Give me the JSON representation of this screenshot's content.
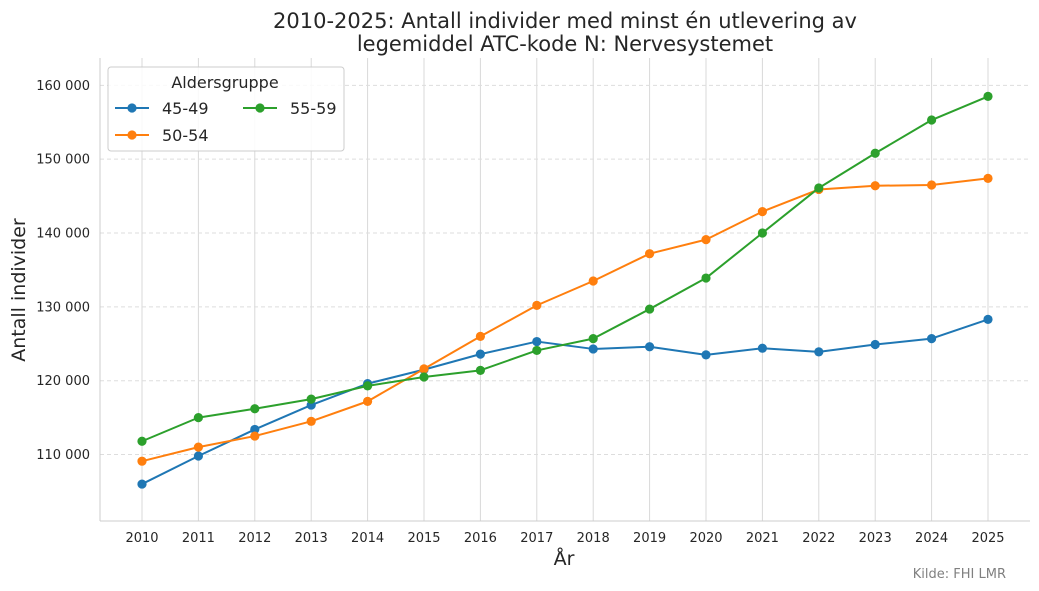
{
  "chart_data": {
    "type": "line",
    "title_line1": "2010-2025: Antall individer med minst én utlevering av",
    "title_line2": "legemiddel ATC-kode N: Nervesystemet",
    "xlabel": "År",
    "ylabel": "Antall individer",
    "x": [
      2010,
      2011,
      2012,
      2013,
      2014,
      2015,
      2016,
      2017,
      2018,
      2019,
      2020,
      2021,
      2022,
      2023,
      2024,
      2025
    ],
    "x_tick_labels": [
      "2010",
      "2011",
      "2012",
      "2013",
      "2014",
      "2015",
      "2016",
      "2017",
      "2018",
      "2019",
      "2020",
      "2021",
      "2022",
      "2023",
      "2024",
      "2025"
    ],
    "ylim": [
      101000,
      163700
    ],
    "y_ticks": [
      110000,
      120000,
      130000,
      140000,
      150000,
      160000
    ],
    "y_tick_labels": [
      "110 000",
      "120 000",
      "130 000",
      "140 000",
      "150 000",
      "160 000"
    ],
    "grid": true,
    "legend": {
      "title": "Aldersgruppe",
      "position": "top-left",
      "columns": 2
    },
    "series": [
      {
        "name": "45-49",
        "color": "#1f77b4",
        "values": [
          106000,
          109800,
          113400,
          116700,
          119600,
          121500,
          123600,
          125300,
          124300,
          124600,
          123500,
          124400,
          123900,
          124900,
          125700,
          128300
        ]
      },
      {
        "name": "50-54",
        "color": "#ff7f0e",
        "values": [
          109100,
          111000,
          112500,
          114500,
          117200,
          121600,
          126000,
          130200,
          133500,
          137200,
          139100,
          142900,
          145900,
          146400,
          146500,
          147400
        ]
      },
      {
        "name": "55-59",
        "color": "#2ca02c",
        "values": [
          111800,
          115000,
          116200,
          117500,
          119300,
          120500,
          121400,
          124100,
          125700,
          129700,
          133900,
          140000,
          146100,
          150800,
          155300,
          158500
        ]
      }
    ],
    "source": "Kilde: FHI LMR"
  }
}
